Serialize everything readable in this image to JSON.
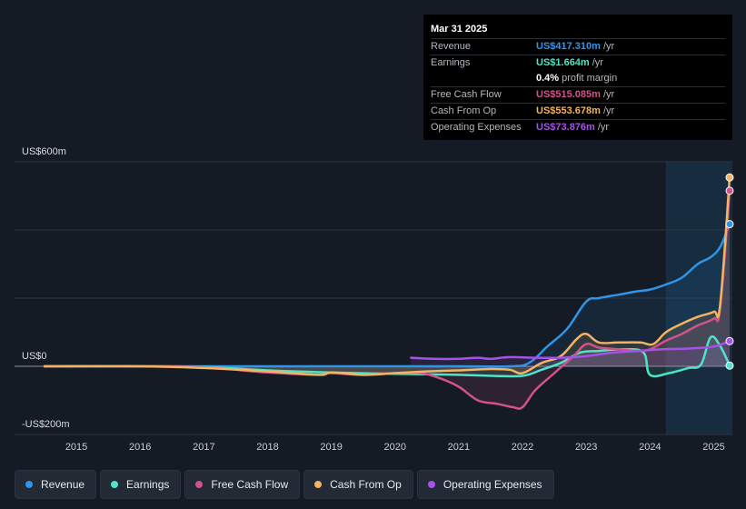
{
  "tooltip": {
    "date": "Mar 31 2025",
    "rows": [
      {
        "label": "Revenue",
        "value": "US$417.310m",
        "unit": "/yr",
        "color": "#2f95e8"
      },
      {
        "label": "Earnings",
        "value": "US$1.664m",
        "unit": "/yr",
        "color": "#4fe3c8"
      },
      {
        "label": "",
        "value": "0.4%",
        "unit": "profit margin",
        "color": "#ffffff"
      },
      {
        "label": "Free Cash Flow",
        "value": "US$515.085m",
        "unit": "/yr",
        "color": "#d2528a"
      },
      {
        "label": "Cash From Op",
        "value": "US$553.678m",
        "unit": "/yr",
        "color": "#f0b463"
      },
      {
        "label": "Operating Expenses",
        "value": "US$73.876m",
        "unit": "/yr",
        "color": "#a452e8"
      }
    ]
  },
  "legend": [
    {
      "label": "Revenue",
      "color": "#2f95e8"
    },
    {
      "label": "Earnings",
      "color": "#4fe3c8"
    },
    {
      "label": "Free Cash Flow",
      "color": "#d2528a"
    },
    {
      "label": "Cash From Op",
      "color": "#f0b463"
    },
    {
      "label": "Operating Expenses",
      "color": "#a452e8"
    }
  ],
  "chart_data": {
    "type": "line",
    "y_tick_labels": [
      "US$600m",
      "US$0",
      "-US$200m"
    ],
    "ylim": [
      -200,
      600
    ],
    "xlim": [
      2014.5,
      2025.25
    ],
    "x_ticks": [
      2015,
      2016,
      2017,
      2018,
      2019,
      2020,
      2021,
      2022,
      2023,
      2024,
      2025
    ],
    "x_tick_labels": [
      "2015",
      "2016",
      "2017",
      "2018",
      "2019",
      "2020",
      "2021",
      "2022",
      "2023",
      "2024",
      "2025"
    ],
    "highlight_start": 2024.25,
    "series": [
      {
        "name": "Revenue",
        "color": "#2f95e8",
        "points": [
          [
            2014.5,
            0
          ],
          [
            2016,
            0
          ],
          [
            2018,
            0
          ],
          [
            2020,
            0
          ],
          [
            2021,
            0
          ],
          [
            2021.8,
            0
          ],
          [
            2022.1,
            10
          ],
          [
            2022.4,
            60
          ],
          [
            2022.7,
            110
          ],
          [
            2023.0,
            190
          ],
          [
            2023.2,
            200
          ],
          [
            2023.5,
            210
          ],
          [
            2023.8,
            220
          ],
          [
            2024.0,
            225
          ],
          [
            2024.25,
            240
          ],
          [
            2024.5,
            260
          ],
          [
            2024.75,
            300
          ],
          [
            2024.95,
            320
          ],
          [
            2025.1,
            350
          ],
          [
            2025.25,
            417
          ]
        ]
      },
      {
        "name": "Earnings",
        "color": "#4fe3c8",
        "points": [
          [
            2014.5,
            0
          ],
          [
            2016,
            0
          ],
          [
            2017,
            -2
          ],
          [
            2018,
            -12
          ],
          [
            2019,
            -18
          ],
          [
            2020,
            -22
          ],
          [
            2021,
            -25
          ],
          [
            2021.5,
            -28
          ],
          [
            2022,
            -28
          ],
          [
            2022.3,
            -10
          ],
          [
            2022.6,
            10
          ],
          [
            2022.9,
            40
          ],
          [
            2023.2,
            45
          ],
          [
            2023.6,
            50
          ],
          [
            2023.9,
            40
          ],
          [
            2024.0,
            -25
          ],
          [
            2024.3,
            -20
          ],
          [
            2024.6,
            -5
          ],
          [
            2024.8,
            5
          ],
          [
            2024.95,
            85
          ],
          [
            2025.1,
            60
          ],
          [
            2025.25,
            2
          ]
        ]
      },
      {
        "name": "Free Cash Flow",
        "color": "#d2528a",
        "points": [
          [
            2014.5,
            0
          ],
          [
            2016,
            0
          ],
          [
            2017,
            -3
          ],
          [
            2018,
            -18
          ],
          [
            2018.8,
            -25
          ],
          [
            2019,
            -20
          ],
          [
            2019.5,
            -25
          ],
          [
            2020,
            -20
          ],
          [
            2020.4,
            -20
          ],
          [
            2020.7,
            -35
          ],
          [
            2021,
            -60
          ],
          [
            2021.3,
            -100
          ],
          [
            2021.6,
            -110
          ],
          [
            2021.85,
            -120
          ],
          [
            2022.0,
            -120
          ],
          [
            2022.2,
            -70
          ],
          [
            2022.5,
            -20
          ],
          [
            2022.8,
            30
          ],
          [
            2023.0,
            65
          ],
          [
            2023.2,
            55
          ],
          [
            2023.5,
            50
          ],
          [
            2023.8,
            45
          ],
          [
            2024.0,
            50
          ],
          [
            2024.25,
            75
          ],
          [
            2024.5,
            95
          ],
          [
            2024.75,
            120
          ],
          [
            2025.0,
            140
          ],
          [
            2025.1,
            170
          ],
          [
            2025.25,
            515
          ]
        ]
      },
      {
        "name": "Cash From Op",
        "color": "#f0b463",
        "points": [
          [
            2014.5,
            0
          ],
          [
            2016,
            0
          ],
          [
            2017,
            -5
          ],
          [
            2018,
            -15
          ],
          [
            2018.8,
            -25
          ],
          [
            2019,
            -18
          ],
          [
            2019.5,
            -25
          ],
          [
            2020,
            -20
          ],
          [
            2020.5,
            -15
          ],
          [
            2021,
            -12
          ],
          [
            2021.5,
            -8
          ],
          [
            2021.8,
            -10
          ],
          [
            2022.0,
            -20
          ],
          [
            2022.3,
            10
          ],
          [
            2022.6,
            30
          ],
          [
            2022.85,
            80
          ],
          [
            2023.0,
            95
          ],
          [
            2023.2,
            70
          ],
          [
            2023.5,
            70
          ],
          [
            2023.85,
            70
          ],
          [
            2024.05,
            65
          ],
          [
            2024.25,
            100
          ],
          [
            2024.5,
            125
          ],
          [
            2024.75,
            145
          ],
          [
            2025.0,
            160
          ],
          [
            2025.1,
            180
          ],
          [
            2025.25,
            554
          ]
        ]
      },
      {
        "name": "Operating Expenses",
        "color": "#a452e8",
        "points": [
          [
            2020.25,
            25
          ],
          [
            2020.6,
            22
          ],
          [
            2021,
            22
          ],
          [
            2021.3,
            25
          ],
          [
            2021.5,
            22
          ],
          [
            2021.8,
            27
          ],
          [
            2022.2,
            25
          ],
          [
            2022.6,
            25
          ],
          [
            2023.0,
            30
          ],
          [
            2023.4,
            40
          ],
          [
            2023.8,
            45
          ],
          [
            2024.2,
            50
          ],
          [
            2024.6,
            52
          ],
          [
            2025.0,
            58
          ],
          [
            2025.25,
            74
          ]
        ]
      }
    ]
  }
}
